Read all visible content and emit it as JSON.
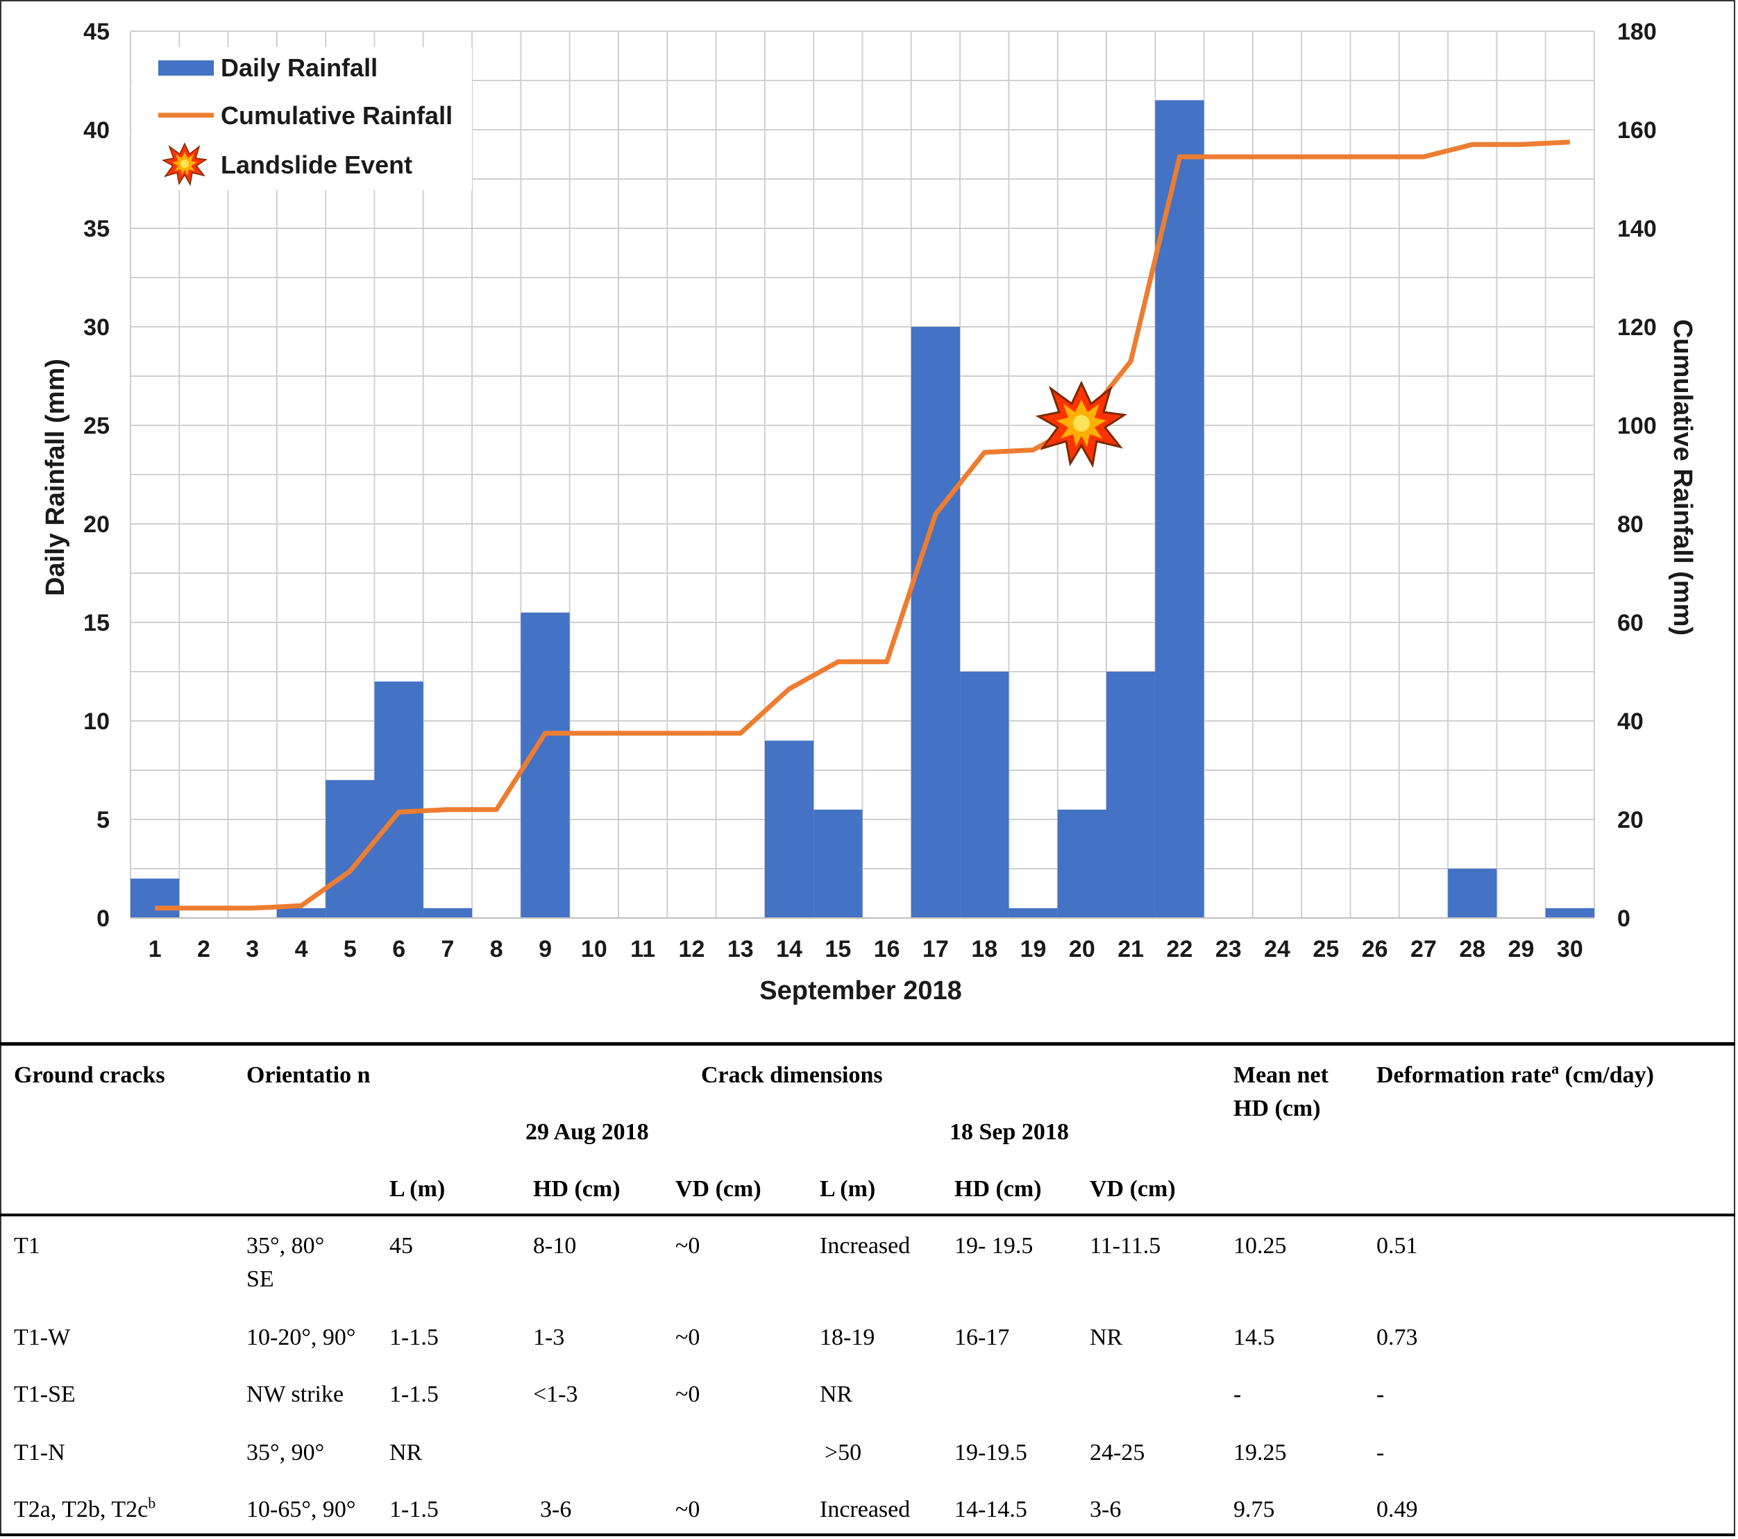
{
  "chart_data": {
    "type": "bar+line",
    "xlabel": "September 2018",
    "ylabel_left": "Daily Rainfall (mm)",
    "ylabel_right": "Cumulative Rainfall (mm)",
    "ylim_left": [
      0,
      45
    ],
    "ylim_right": [
      0,
      180
    ],
    "yticks_left": [
      0,
      5,
      10,
      15,
      20,
      25,
      30,
      35,
      40,
      45
    ],
    "yticks_right": [
      0,
      20,
      40,
      60,
      80,
      100,
      120,
      140,
      160,
      180
    ],
    "grid": true,
    "legend_position": "top-left",
    "categories": [
      "1",
      "2",
      "3",
      "4",
      "5",
      "6",
      "7",
      "8",
      "9",
      "10",
      "11",
      "12",
      "13",
      "14",
      "15",
      "16",
      "17",
      "18",
      "19",
      "20",
      "21",
      "22",
      "23",
      "24",
      "25",
      "26",
      "27",
      "28",
      "29",
      "30"
    ],
    "series": [
      {
        "name": "Daily Rainfall",
        "type": "bar",
        "axis": "left",
        "color": "#4472C4",
        "values": [
          2,
          0,
          0,
          0.5,
          7,
          12,
          0.5,
          0,
          15.5,
          0,
          0,
          0,
          0,
          9,
          5.5,
          0,
          30,
          12.5,
          0.5,
          5.5,
          12.5,
          41.5,
          0,
          0,
          0,
          0,
          0,
          2.5,
          0,
          0.5
        ]
      },
      {
        "name": "Cumulative Rainfall",
        "type": "line",
        "axis": "right",
        "color": "#ED7D31",
        "values": [
          2,
          2,
          2,
          2.5,
          9.5,
          21.5,
          22,
          22,
          37.5,
          37.5,
          37.5,
          37.5,
          37.5,
          46.5,
          52,
          52,
          82,
          94.5,
          95,
          100.5,
          113,
          154.5,
          154.5,
          154.5,
          154.5,
          154.5,
          154.5,
          157,
          157,
          157.5
        ]
      }
    ],
    "annotations": [
      {
        "name": "Landslide Event",
        "x": "20",
        "y_right": 101,
        "icon": "explosion-icon"
      }
    ]
  },
  "table": {
    "headers": {
      "ground_cracks": "Ground cracks",
      "orientation": "Orientatio n",
      "crack_dimensions": "Crack dimensions",
      "date1": "29 Aug 2018",
      "date2": "18 Sep 2018",
      "mean_net": "Mean net HD (cm)",
      "deformation": "Deformation rate",
      "deformation_sup": "a",
      "deformation_unit": " (cm/day)",
      "l1": "L (m)",
      "hd1": "HD (cm)",
      "vd1": "VD (cm)",
      "l2": "L (m)",
      "hd2": "HD (cm)",
      "vd2": "VD (cm)"
    },
    "rows": [
      {
        "crack": "T1",
        "crack_sup": "",
        "orientation": "35°, 80° SE",
        "l1": "45",
        "hd1": "8-10",
        "vd1": "~0",
        "l2": "Increased",
        "hd2": "19- 19.5",
        "vd2": "11-11.5",
        "mean": "10.25",
        "rate": "0.51"
      },
      {
        "crack": "T1-W",
        "crack_sup": "",
        "orientation": "10-20°, 90°",
        "l1": "1-1.5",
        "hd1": "1-3",
        "vd1": "~0",
        "l2": "18-19",
        "hd2": "16-17",
        "vd2": "NR",
        "mean": "14.5",
        "rate": "0.73"
      },
      {
        "crack": "T1-SE",
        "crack_sup": "",
        "orientation": "NW strike",
        "l1": "1-1.5",
        "hd1": "<1-3",
        "vd1": "~0",
        "l2": "NR",
        "hd2": "",
        "vd2": "",
        "mean": "-",
        "rate": "-"
      },
      {
        "crack": "T1-N",
        "crack_sup": "",
        "orientation": "35°, 90°",
        "l1": "NR",
        "hd1": "",
        "vd1": "",
        "l2": ">50",
        "hd2": "19-19.5",
        "vd2": "24-25",
        "mean": "19.25",
        "rate": "-"
      },
      {
        "crack": "T2a, T2b, T2c",
        "crack_sup": "b",
        "orientation": "10-65°, 90°",
        "l1": "1-1.5",
        "hd1": "3-6",
        "vd1": "~0",
        "l2": "Increased",
        "hd2": "14-14.5",
        "vd2": "3-6",
        "mean": "9.75",
        "rate": "0.49"
      }
    ]
  }
}
